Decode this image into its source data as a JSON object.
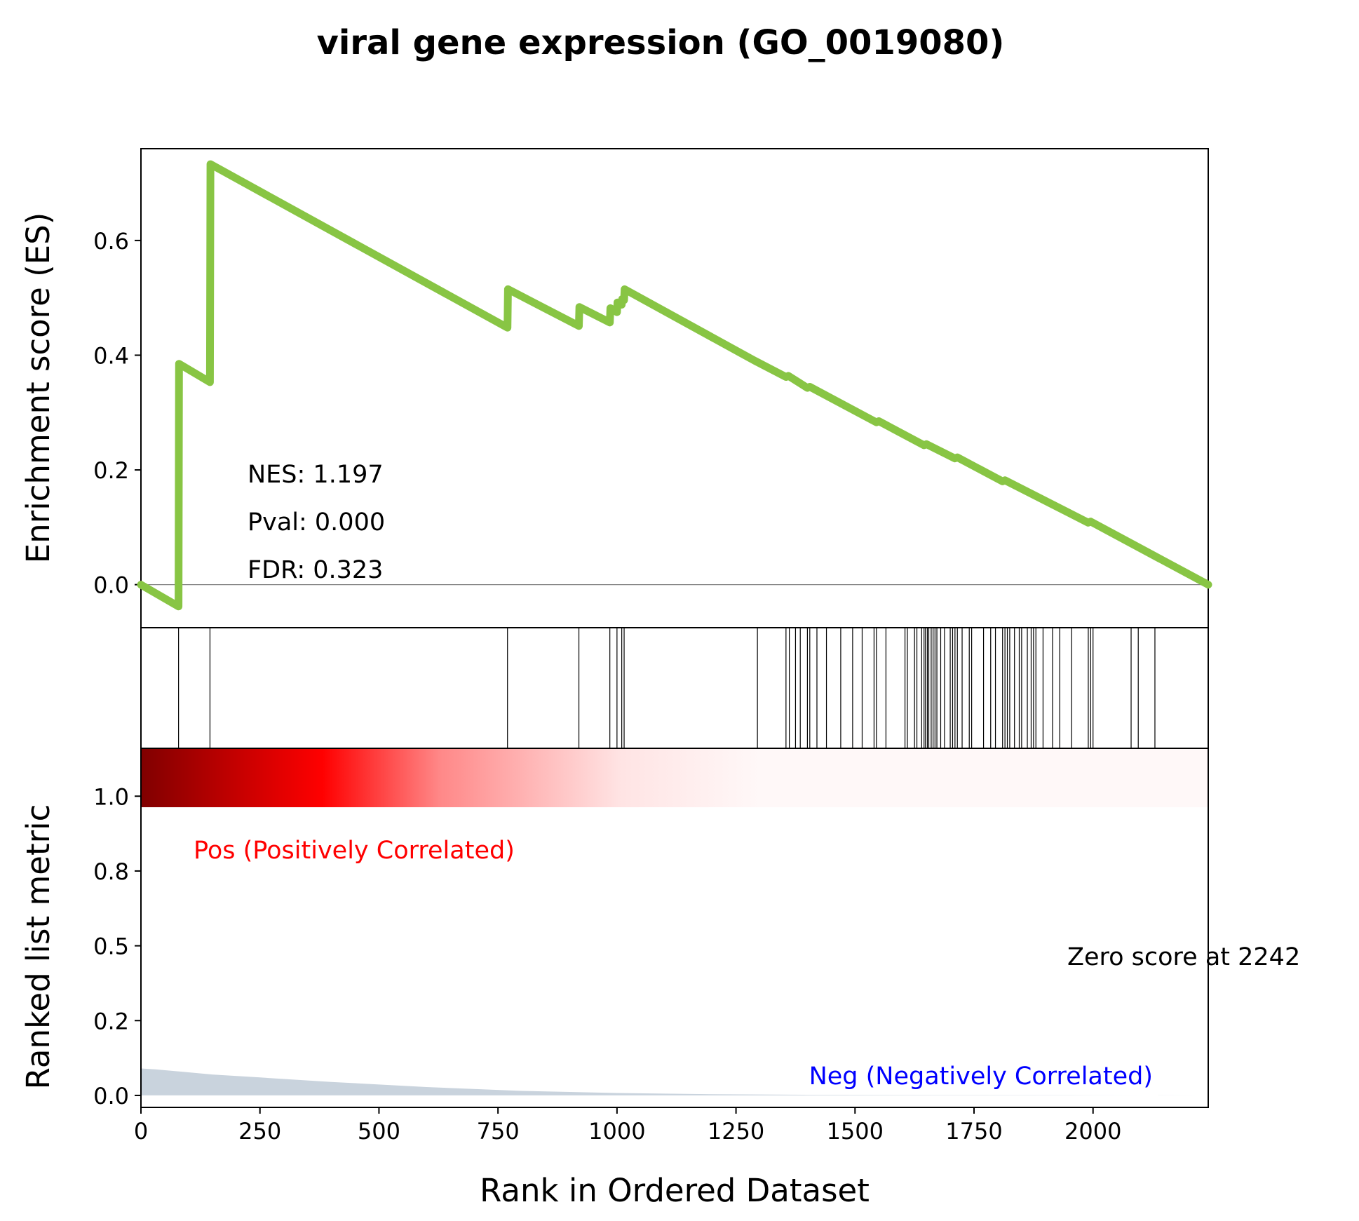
{
  "chart_data": {
    "type": "line",
    "title": "viral gene expression (GO_0019080)",
    "xlabel": "Rank in Ordered Dataset",
    "xlim": [
      0,
      2242
    ],
    "xticks": [
      0,
      250,
      500,
      750,
      1000,
      1250,
      1500,
      1750,
      2000
    ],
    "es_panel": {
      "ylabel": "Enrichment score (ES)",
      "ylim": [
        -0.075,
        0.76
      ],
      "yticks": [
        "0.0",
        "0.2",
        "0.4",
        "0.6"
      ],
      "ytick_values": [
        0.0,
        0.2,
        0.4,
        0.6
      ],
      "line_color": "#88c544",
      "zero_line": true,
      "stats": {
        "nes": "NES: 1.197",
        "pval": "Pval: 0.000",
        "fdr": "FDR: 0.323"
      },
      "series": [
        {
          "x": [
            0,
            79,
            80,
            145,
            146,
            770,
            771,
            920,
            921,
            985,
            986,
            1000,
            1001,
            1010,
            1011,
            1015,
            1016,
            1290,
            1295,
            1355,
            1360,
            1400,
            1405,
            1545,
            1550,
            1645,
            1650,
            1710,
            1715,
            1810,
            1815,
            1990,
            1995,
            2242
          ],
          "y": [
            0.0,
            -0.038,
            0.385,
            0.353,
            0.733,
            0.448,
            0.515,
            0.451,
            0.484,
            0.457,
            0.482,
            0.475,
            0.492,
            0.488,
            0.498,
            0.496,
            0.515,
            0.39,
            0.388,
            0.362,
            0.364,
            0.343,
            0.345,
            0.283,
            0.285,
            0.243,
            0.245,
            0.22,
            0.222,
            0.18,
            0.182,
            0.108,
            0.11,
            0.0
          ]
        }
      ]
    },
    "hits_panel": {
      "positions": [
        79,
        145,
        770,
        920,
        985,
        1000,
        1010,
        1015,
        1295,
        1355,
        1362,
        1375,
        1385,
        1400,
        1405,
        1420,
        1440,
        1470,
        1495,
        1515,
        1540,
        1545,
        1565,
        1605,
        1610,
        1625,
        1630,
        1640,
        1645,
        1648,
        1652,
        1655,
        1660,
        1664,
        1668,
        1672,
        1680,
        1688,
        1700,
        1705,
        1710,
        1715,
        1725,
        1740,
        1745,
        1770,
        1785,
        1795,
        1810,
        1815,
        1820,
        1825,
        1835,
        1845,
        1850,
        1862,
        1870,
        1875,
        1880,
        1895,
        1915,
        1930,
        1955,
        1990,
        1995,
        2000,
        2080,
        2095,
        2130
      ]
    },
    "rank_panel": {
      "ylabel": "Ranked list metric",
      "ylim": [
        -0.04,
        1.16
      ],
      "yticks": [
        "0.0",
        "0.2",
        "0.5",
        "0.8",
        "1.0"
      ],
      "ytick_values": [
        0.0,
        0.25,
        0.5,
        0.75,
        1.0
      ],
      "fill_color": "#c9d3dd",
      "pos_label": "Pos (Positively Correlated)",
      "neg_label": "Neg (Negatively Correlated)",
      "pos_color": "#ff0000",
      "neg_color": "#0000ff",
      "zero_score": "Zero score at 2242",
      "colorbar_stops": [
        "#800000",
        "#cc0000",
        "#ff0000",
        "#ff8888",
        "#ffe4e4",
        "#fff8f8"
      ],
      "metric": {
        "x": [
          0,
          30,
          80,
          150,
          250,
          400,
          600,
          800,
          1000,
          1200,
          1400,
          1700,
          2000,
          2242
        ],
        "y": [
          0.09,
          0.087,
          0.08,
          0.07,
          0.06,
          0.045,
          0.028,
          0.015,
          0.008,
          0.004,
          0.002,
          0.001,
          0.0005,
          0.0
        ]
      }
    }
  }
}
